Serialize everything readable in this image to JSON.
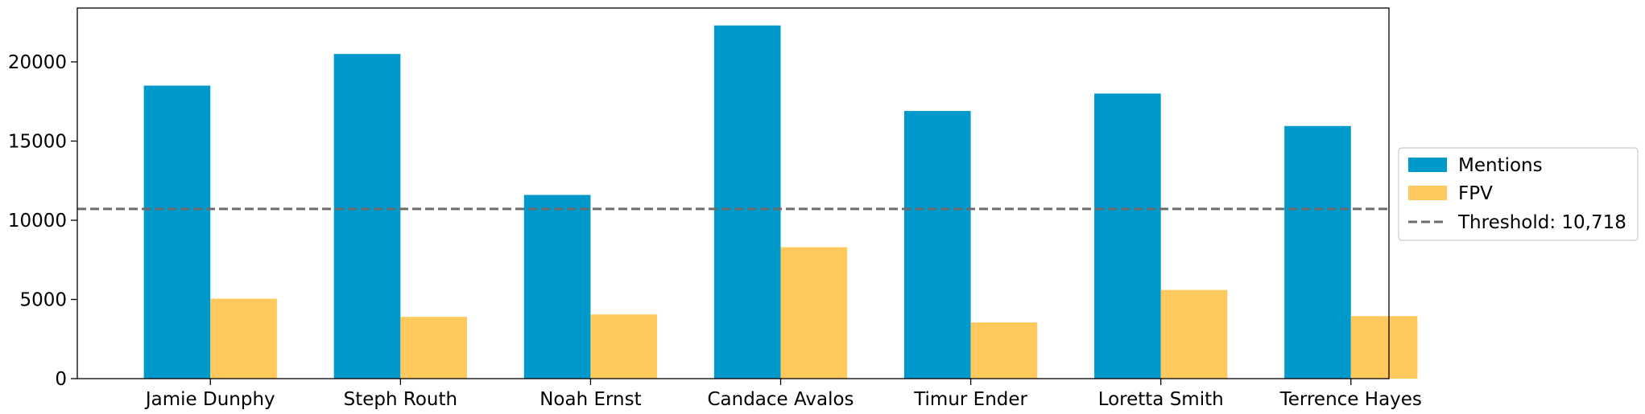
{
  "chart_data": {
    "type": "bar",
    "title": "",
    "xlabel": "",
    "ylabel": "",
    "categories": [
      "Jamie Dunphy",
      "Steph Routh",
      "Noah Ernst",
      "Candace Avalos",
      "Timur Ender",
      "Loretta Smith",
      "Terrence Hayes"
    ],
    "series": [
      {
        "name": "Mentions",
        "color": "#0099CC",
        "values": [
          18500,
          20500,
          11600,
          22300,
          16900,
          18000,
          15950
        ]
      },
      {
        "name": "FPV",
        "color": "#FFC95E",
        "values": [
          5050,
          3900,
          4050,
          8300,
          3550,
          5600,
          3950
        ]
      }
    ],
    "threshold": {
      "label": "Threshold: 10,718",
      "value": 10718,
      "color": "#6b6b6b"
    },
    "ylim": [
      0,
      23400
    ],
    "yticks": [
      0,
      5000,
      10000,
      15000,
      20000
    ],
    "grid": false,
    "legend": "center-right"
  }
}
